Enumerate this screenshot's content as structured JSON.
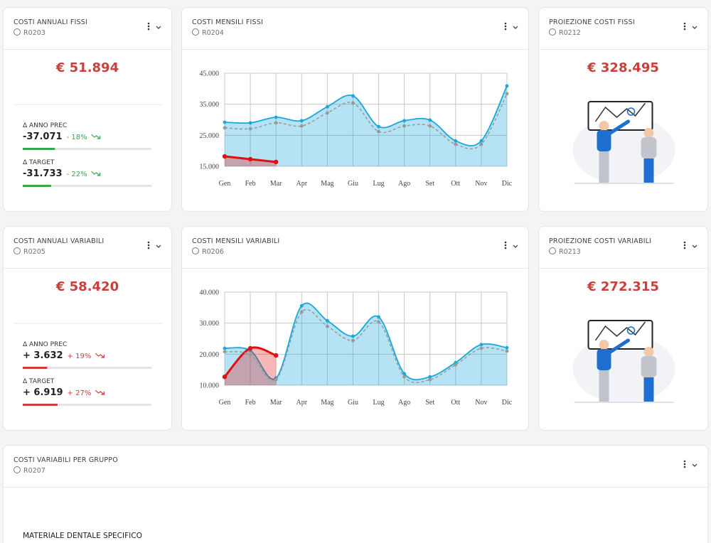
{
  "cards": [
    {
      "kind": "kpi",
      "title": "COSTI ANNUALI FISSI",
      "code": "R0203",
      "amount": "€ 51.894",
      "color": "#3aa84a",
      "kpis": [
        {
          "label": "Δ ANNO PREC",
          "value": "-37.071",
          "pct": "- 18%",
          "bar": 25
        },
        {
          "label": "Δ TARGET",
          "value": "-31.733",
          "pct": "- 22%",
          "bar": 22
        }
      ]
    },
    {
      "kind": "chart",
      "title": "COSTI MENSILI FISSI",
      "code": "R0204",
      "chart_data": {
        "type": "line",
        "categories": [
          "Gen",
          "Feb",
          "Mar",
          "Apr",
          "Mag",
          "Giu",
          "Lug",
          "Ago",
          "Set",
          "Ott",
          "Nov",
          "Dic"
        ],
        "ylim": [
          15000,
          45000
        ],
        "yticks": [
          {
            "value": 15000,
            "label": "15.000"
          },
          {
            "value": 25000,
            "label": "25.000"
          },
          {
            "value": 35000,
            "label": "35.000"
          },
          {
            "value": 45000,
            "label": "45.000"
          }
        ],
        "grid": true,
        "series": [
          {
            "color": "#1aa7dc",
            "fill": true,
            "dashed": false,
            "values": [
              29200,
              29000,
              30800,
              29700,
              34200,
              37700,
              27800,
              29700,
              29900,
              23200,
              23200,
              40900
            ]
          },
          {
            "color": "#999999",
            "fill": false,
            "dashed": true,
            "values": [
              27400,
              27100,
              29000,
              28000,
              32200,
              35400,
              26200,
              28000,
              28000,
              22100,
              22100,
              38400
            ]
          },
          {
            "color": "#e01010",
            "fill": true,
            "dashed": false,
            "values": [
              18200,
              17300,
              16400,
              null,
              null,
              null,
              null,
              null,
              null,
              null,
              null,
              null
            ]
          }
        ]
      }
    },
    {
      "kind": "projection",
      "title": "PROIEZIONE COSTI FISSI",
      "code": "R0212",
      "amount": "€ 328.495"
    },
    {
      "kind": "kpi",
      "title": "COSTI ANNUALI VARIABILI",
      "code": "R0205",
      "amount": "€ 58.420",
      "color": "#d03b3b",
      "kpis": [
        {
          "label": "Δ ANNO PREC",
          "value": "+ 3.632",
          "pct": "+ 19%",
          "bar": 19
        },
        {
          "label": "Δ TARGET",
          "value": "+ 6.919",
          "pct": "+ 27%",
          "bar": 27
        }
      ]
    },
    {
      "kind": "chart",
      "title": "COSTI MENSILI VARIABILI",
      "code": "R0206",
      "chart_data": {
        "type": "line",
        "categories": [
          "Gen",
          "Feb",
          "Mar",
          "Apr",
          "Mag",
          "Giu",
          "Lug",
          "Ago",
          "Set",
          "Ott",
          "Nov",
          "Dic"
        ],
        "ylim": [
          10000,
          40000
        ],
        "yticks": [
          {
            "value": 10000,
            "label": "10.000"
          },
          {
            "value": 20000,
            "label": "20.000"
          },
          {
            "value": 30000,
            "label": "30.000"
          },
          {
            "value": 40000,
            "label": "40.000"
          }
        ],
        "grid": true,
        "series": [
          {
            "color": "#1aa7dc",
            "fill": true,
            "dashed": false,
            "values": [
              21900,
              21200,
              12300,
              35600,
              30800,
              25800,
              32000,
              13700,
              12700,
              17300,
              23100,
              22100
            ]
          },
          {
            "color": "#999999",
            "fill": false,
            "dashed": true,
            "values": [
              20800,
              19800,
              11800,
              33600,
              29000,
              24400,
              30400,
              12700,
              11800,
              16600,
              21900,
              21000
            ]
          },
          {
            "color": "#e01010",
            "fill": true,
            "dashed": false,
            "values": [
              12700,
              21900,
              19600,
              null,
              null,
              null,
              null,
              null,
              null,
              null,
              null,
              null
            ]
          }
        ]
      }
    },
    {
      "kind": "projection",
      "title": "PROIEZIONE COSTI VARIABILI",
      "code": "R0213",
      "amount": "€ 272.315"
    },
    {
      "kind": "table",
      "title": "COSTI VARIABILI PER GRUPPO",
      "code": "R0207",
      "rows": [
        "MATERIALE DENTALE SPECIFICO"
      ]
    }
  ]
}
